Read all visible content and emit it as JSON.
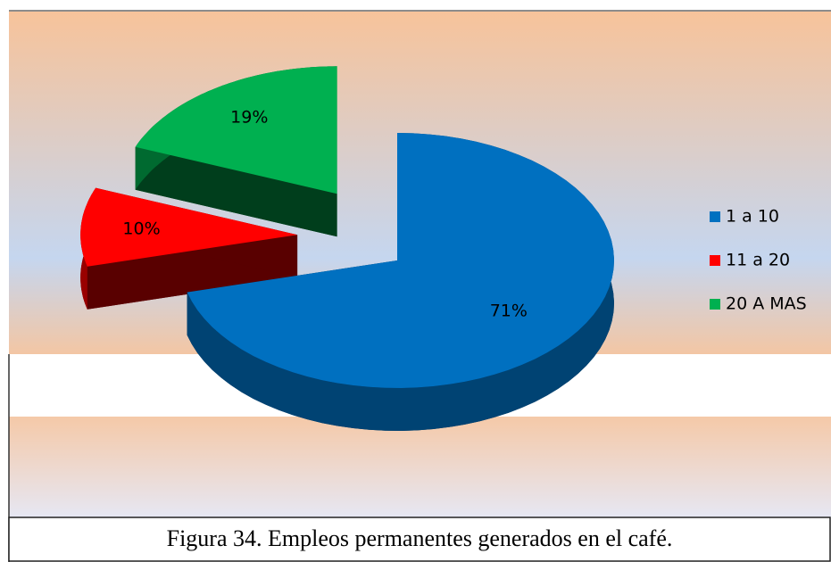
{
  "chart_data": {
    "type": "pie",
    "categories": [
      "1 a 10",
      "11 a 20",
      "20 A MAS"
    ],
    "values": [
      71,
      10,
      19
    ],
    "value_labels": [
      "71%",
      "10%",
      "19%"
    ],
    "colors": [
      "#0070c0",
      "#ff0000",
      "#00b050"
    ],
    "legend": "right",
    "caption": "Figura 34. Empleos permanentes generados en el café."
  }
}
